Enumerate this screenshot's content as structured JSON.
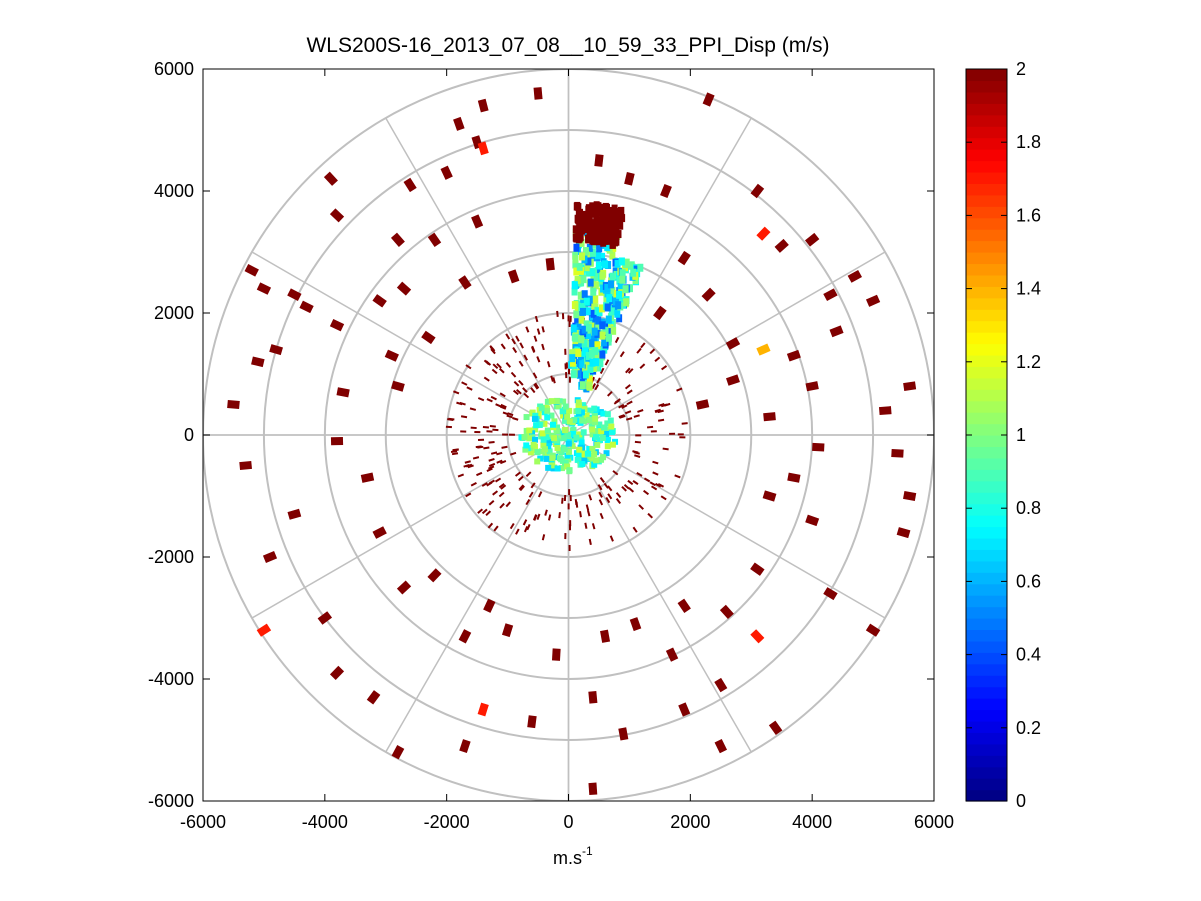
{
  "chart_data": {
    "type": "polar-scatter-ppi",
    "title": "WLS200S-16_2013_07_08__10_59_33_PPI_Disp (m/s)",
    "xlabel_base": "m.s",
    "xlabel_exp": "-1",
    "ylabel": "",
    "xlim": [
      -6000,
      6000
    ],
    "ylim": [
      -6000,
      6000
    ],
    "xticks": [
      -6000,
      -4000,
      -2000,
      0,
      2000,
      4000,
      6000
    ],
    "yticks": [
      -6000,
      -4000,
      -2000,
      0,
      2000,
      4000,
      6000
    ],
    "xtick_labels": [
      "-6000",
      "-4000",
      "-2000",
      "0",
      "2000",
      "4000",
      "6000"
    ],
    "ytick_labels": [
      "-6000",
      "-4000",
      "-2000",
      "0",
      "2000",
      "4000",
      "6000"
    ],
    "polar_rings": [
      1000,
      2000,
      3000,
      4000,
      5000,
      6000
    ],
    "polar_spokes_deg": [
      0,
      30,
      60,
      90,
      120,
      150,
      180,
      210,
      240,
      270,
      300,
      330
    ],
    "colorbar": {
      "range": [
        0,
        2
      ],
      "ticks": [
        0,
        0.2,
        0.4,
        0.6,
        0.8,
        1,
        1.2,
        1.4,
        1.6,
        1.8,
        2
      ],
      "tick_labels": [
        "0",
        "0.2",
        "0.4",
        "0.6",
        "0.8",
        "1",
        "1.2",
        "1.4",
        "1.6",
        "1.8",
        "2"
      ],
      "colormap": "jet"
    },
    "clusters": [
      {
        "name": "central-blob",
        "x": 0,
        "y": 200,
        "r_inner": 0,
        "r_outer": 800,
        "value": 0.9
      },
      {
        "name": "north-beam",
        "az_from": 2,
        "az_to": 14,
        "r_inner": 1000,
        "r_outer": 3400,
        "value": 0.8
      },
      {
        "name": "north-northeast-beam",
        "az_from": 14,
        "az_to": 24,
        "r_inner": 800,
        "r_outer": 3000,
        "value": 0.8
      },
      {
        "name": "north-beam-tip",
        "az_from": 2,
        "az_to": 14,
        "r_inner": 3200,
        "r_outer": 3800,
        "value": 2
      }
    ],
    "sparse_points": [
      {
        "x": -3100,
        "y": 2200,
        "value": 2
      },
      {
        "x": -2700,
        "y": 2400,
        "value": 2
      },
      {
        "x": -1500,
        "y": 4800,
        "value": 2
      },
      {
        "x": -1400,
        "y": 4700,
        "value": 1.7
      },
      {
        "x": -1800,
        "y": 5100,
        "value": 2
      },
      {
        "x": -1400,
        "y": 5400,
        "value": 2
      },
      {
        "x": -500,
        "y": 5600,
        "value": 2
      },
      {
        "x": 2300,
        "y": 5500,
        "value": 2
      },
      {
        "x": -3900,
        "y": 4200,
        "value": 2
      },
      {
        "x": -3800,
        "y": 3600,
        "value": 2
      },
      {
        "x": -4500,
        "y": 2300,
        "value": 2
      },
      {
        "x": -5200,
        "y": 2700,
        "value": 2
      },
      {
        "x": -5000,
        "y": 2400,
        "value": 2
      },
      {
        "x": -4300,
        "y": 2100,
        "value": 2
      },
      {
        "x": -5100,
        "y": 1200,
        "value": 2
      },
      {
        "x": -4800,
        "y": 1400,
        "value": 2
      },
      {
        "x": -5300,
        "y": -500,
        "value": 2
      },
      {
        "x": -4900,
        "y": -2000,
        "value": 2
      },
      {
        "x": -5000,
        "y": -3200,
        "value": 1.7
      },
      {
        "x": -3800,
        "y": -3900,
        "value": 2
      },
      {
        "x": -3200,
        "y": -4300,
        "value": 2
      },
      {
        "x": -2800,
        "y": -5200,
        "value": 2
      },
      {
        "x": -1400,
        "y": -4500,
        "value": 1.7
      },
      {
        "x": 400,
        "y": -5800,
        "value": 2
      },
      {
        "x": 400,
        "y": -4300,
        "value": 2
      },
      {
        "x": 2500,
        "y": -4100,
        "value": 2
      },
      {
        "x": 3100,
        "y": -3300,
        "value": 1.7
      },
      {
        "x": 3400,
        "y": -4800,
        "value": 2
      },
      {
        "x": 5000,
        "y": -3200,
        "value": 2
      },
      {
        "x": 5500,
        "y": -1600,
        "value": 2
      },
      {
        "x": 5600,
        "y": -1000,
        "value": 2
      },
      {
        "x": 4300,
        "y": -2600,
        "value": 2
      },
      {
        "x": 5600,
        "y": 800,
        "value": 2
      },
      {
        "x": 5000,
        "y": 2200,
        "value": 2
      },
      {
        "x": 4700,
        "y": 2600,
        "value": 2
      },
      {
        "x": 4300,
        "y": 2300,
        "value": 2
      },
      {
        "x": 3200,
        "y": 1400,
        "value": 1.4
      },
      {
        "x": 3200,
        "y": 3300,
        "value": 1.7
      },
      {
        "x": 3500,
        "y": 3100,
        "value": 2
      },
      {
        "x": 4000,
        "y": 3200,
        "value": 2
      },
      {
        "x": 3100,
        "y": 4000,
        "value": 2
      },
      {
        "x": 1000,
        "y": 4200,
        "value": 2
      },
      {
        "x": 500,
        "y": 4500,
        "value": 2
      },
      {
        "x": 1600,
        "y": 4000,
        "value": 2
      },
      {
        "x": -2000,
        "y": 4300,
        "value": 2
      },
      {
        "x": -2600,
        "y": 4100,
        "value": 2
      },
      {
        "x": -1500,
        "y": 3500,
        "value": 2
      },
      {
        "x": -2200,
        "y": 3200,
        "value": 2
      },
      {
        "x": -2800,
        "y": 3200,
        "value": 2
      },
      {
        "x": 1500,
        "y": 2000,
        "value": 2
      },
      {
        "x": 1900,
        "y": 2900,
        "value": 2
      },
      {
        "x": 2300,
        "y": 2300,
        "value": 2
      },
      {
        "x": 2700,
        "y": 1500,
        "value": 2
      },
      {
        "x": 2200,
        "y": 500,
        "value": 2
      },
      {
        "x": 2700,
        "y": 900,
        "value": 2
      },
      {
        "x": 3300,
        "y": 300,
        "value": 2
      },
      {
        "x": 3700,
        "y": 1300,
        "value": 2
      },
      {
        "x": 4000,
        "y": 800,
        "value": 2
      },
      {
        "x": 4100,
        "y": -200,
        "value": 2
      },
      {
        "x": 4400,
        "y": 1700,
        "value": 2
      },
      {
        "x": 3300,
        "y": -1000,
        "value": 2
      },
      {
        "x": 3700,
        "y": -700,
        "value": 2
      },
      {
        "x": 4000,
        "y": -1400,
        "value": 2
      },
      {
        "x": 3100,
        "y": -2200,
        "value": 2
      },
      {
        "x": 2600,
        "y": -2900,
        "value": 2
      },
      {
        "x": 1900,
        "y": -2800,
        "value": 2
      },
      {
        "x": 1700,
        "y": -3600,
        "value": 2
      },
      {
        "x": 1100,
        "y": -3100,
        "value": 2
      },
      {
        "x": 600,
        "y": -3300,
        "value": 2
      },
      {
        "x": -200,
        "y": -3600,
        "value": 2
      },
      {
        "x": -1000,
        "y": -3200,
        "value": 2
      },
      {
        "x": -1700,
        "y": -3300,
        "value": 2
      },
      {
        "x": -2200,
        "y": -2300,
        "value": 2
      },
      {
        "x": -2700,
        "y": -2500,
        "value": 2
      },
      {
        "x": -3100,
        "y": -1600,
        "value": 2
      },
      {
        "x": -3300,
        "y": -700,
        "value": 2
      },
      {
        "x": -3800,
        "y": -100,
        "value": 2
      },
      {
        "x": -3700,
        "y": 700,
        "value": 2
      },
      {
        "x": -2800,
        "y": 800,
        "value": 2
      },
      {
        "x": -2300,
        "y": 1600,
        "value": 2
      },
      {
        "x": -2900,
        "y": 1300,
        "value": 2
      },
      {
        "x": -3800,
        "y": 1800,
        "value": 2
      },
      {
        "x": -1700,
        "y": 2500,
        "value": 2
      },
      {
        "x": -900,
        "y": 2600,
        "value": 2
      },
      {
        "x": -300,
        "y": 2800,
        "value": 2
      },
      {
        "x": -1300,
        "y": -2800,
        "value": 2
      },
      {
        "x": -600,
        "y": -4700,
        "value": 2
      },
      {
        "x": -1700,
        "y": -5100,
        "value": 2
      },
      {
        "x": 900,
        "y": -4900,
        "value": 2
      },
      {
        "x": 1900,
        "y": -4500,
        "value": 2
      },
      {
        "x": 2500,
        "y": -5100,
        "value": 2
      },
      {
        "x": -4000,
        "y": -3000,
        "value": 2
      },
      {
        "x": -4500,
        "y": -1300,
        "value": 2
      },
      {
        "x": -5500,
        "y": 500,
        "value": 2
      },
      {
        "x": 5200,
        "y": 400,
        "value": 2
      },
      {
        "x": 5400,
        "y": -300,
        "value": 2
      }
    ],
    "near_ring_speckle": {
      "r_inner": 900,
      "r_outer": 2000,
      "value": 2,
      "count": 260
    }
  }
}
